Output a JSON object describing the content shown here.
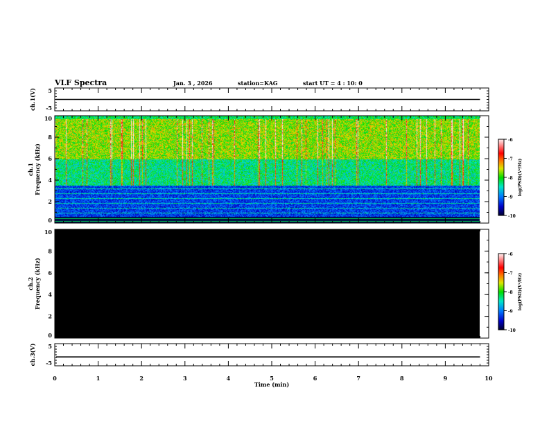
{
  "header": {
    "title": "VLF Spectra",
    "date": "Jan. 3 , 2026",
    "station": "station=KAG",
    "start": "start UT =  4 : 10: 0"
  },
  "chart_data": {
    "type": "heatmap",
    "xlabel": "Time (min)",
    "xlim": [
      0,
      10
    ],
    "x_ticks": [
      "0",
      "1",
      "2",
      "3",
      "4",
      "5",
      "6",
      "7",
      "8",
      "9",
      "10"
    ],
    "data_end_min": 9.8,
    "panels": [
      {
        "id": "ch1-wave",
        "ylabel": "ch.1(V)",
        "ylim": [
          -5,
          5
        ],
        "y_ticks": [
          "5",
          "-5"
        ],
        "trace_value": 0
      },
      {
        "id": "ch1-spec",
        "ylabel": "ch.1 Frequency (kHz)",
        "ylim": [
          0,
          10
        ],
        "y_ticks": [
          "0",
          "2",
          "4",
          "6",
          "8",
          "10"
        ],
        "content": "spectrogram"
      },
      {
        "id": "ch2-spec",
        "ylabel": "ch.2 Frequency (kHz)",
        "ylim": [
          0,
          10
        ],
        "y_ticks": [
          "0",
          "2",
          "4",
          "6",
          "8",
          "10"
        ],
        "content": "empty (black)"
      },
      {
        "id": "ch3-wave",
        "ylabel": "ch.3(V)",
        "ylim": [
          -5,
          5
        ],
        "y_ticks": [
          "5",
          "-5"
        ],
        "trace_value": -1
      }
    ],
    "colorbar": {
      "label": "log(PSD)(V²/Hz)",
      "range": [
        -10,
        -6
      ],
      "ticks": [
        "-6",
        "-7",
        "-8",
        "-9",
        "-10"
      ]
    }
  }
}
